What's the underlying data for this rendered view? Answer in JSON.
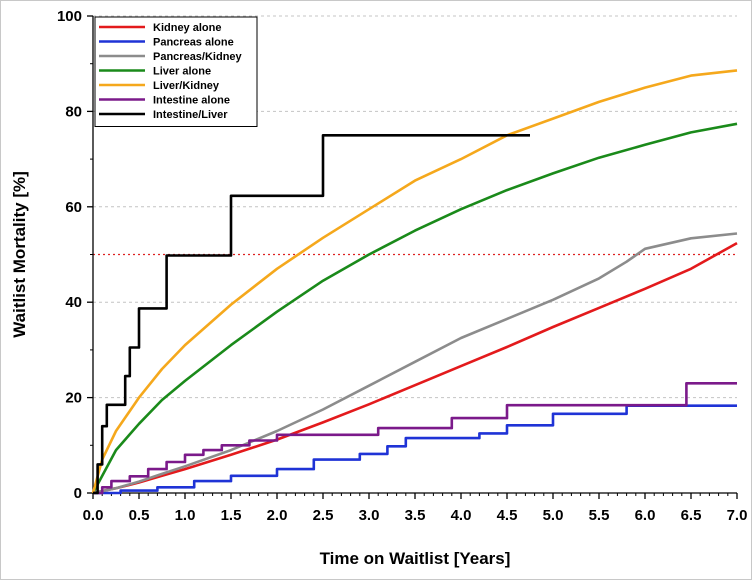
{
  "chart_data": {
    "type": "line",
    "xlabel": "Time on Waitlist [Years]",
    "ylabel": "Waitlist Mortality [%]",
    "xlim": [
      0,
      7.0
    ],
    "ylim": [
      0,
      100
    ],
    "xticks": [
      "0.0",
      "0.5",
      "1.0",
      "1.5",
      "2.0",
      "2.5",
      "3.0",
      "3.5",
      "4.0",
      "4.5",
      "5.0",
      "5.5",
      "6.0",
      "6.5",
      "7.0"
    ],
    "yticks": [
      "0",
      "20",
      "40",
      "60",
      "80",
      "100"
    ],
    "grid": "horizontal dashed",
    "legend_position": "top-left",
    "reference_line": {
      "y": 50,
      "color": "#dd2222",
      "style": "dotted"
    },
    "series": [
      {
        "name": "Kidney alone",
        "color": "#e31a1c",
        "step": false,
        "x": [
          0,
          0.25,
          0.5,
          0.75,
          1.0,
          1.5,
          2.0,
          2.5,
          3.0,
          3.5,
          4.0,
          4.5,
          5.0,
          5.5,
          6.0,
          6.5,
          7.0
        ],
        "y": [
          0,
          1.0,
          2.2,
          3.6,
          5.0,
          8.0,
          11.2,
          14.8,
          18.6,
          22.6,
          26.6,
          30.6,
          34.8,
          38.8,
          42.8,
          47.0,
          52.4
        ]
      },
      {
        "name": "Pancreas alone",
        "color": "#1f33d6",
        "step": true,
        "x": [
          0,
          0.3,
          0.7,
          1.1,
          1.5,
          2.0,
          2.4,
          2.9,
          3.2,
          3.4,
          4.2,
          4.5,
          5.0,
          5.5,
          5.8,
          7.0
        ],
        "y": [
          0,
          0.5,
          1.2,
          2.5,
          3.6,
          5.0,
          7.0,
          8.2,
          9.8,
          11.5,
          12.5,
          14.2,
          16.6,
          16.6,
          18.3,
          18.3
        ]
      },
      {
        "name": "Pancreas/Kidney",
        "color": "#8c8c8c",
        "step": false,
        "x": [
          0,
          0.25,
          0.5,
          0.75,
          1.0,
          1.5,
          2.0,
          2.5,
          3.0,
          3.5,
          4.0,
          4.5,
          5.0,
          5.5,
          5.8,
          6.0,
          6.5,
          7.0
        ],
        "y": [
          0,
          1.0,
          2.4,
          4.0,
          5.6,
          9.0,
          13.0,
          17.5,
          22.5,
          27.5,
          32.5,
          36.5,
          40.5,
          45.0,
          48.5,
          51.2,
          53.4,
          54.4
        ]
      },
      {
        "name": "Liver alone",
        "color": "#1a8a1a",
        "step": false,
        "x": [
          0,
          0.25,
          0.5,
          0.75,
          1.0,
          1.5,
          2.0,
          2.5,
          3.0,
          3.5,
          4.0,
          4.5,
          5.0,
          5.5,
          6.0,
          6.5,
          7.0
        ],
        "y": [
          0,
          9.0,
          14.5,
          19.5,
          23.5,
          31.0,
          38.0,
          44.5,
          50.0,
          55.0,
          59.5,
          63.5,
          67.0,
          70.3,
          73.0,
          75.6,
          77.4
        ]
      },
      {
        "name": "Liver/Kidney",
        "color": "#f5a81c",
        "step": false,
        "x": [
          0,
          0.1,
          0.25,
          0.5,
          0.75,
          1.0,
          1.5,
          2.0,
          2.5,
          3.0,
          3.5,
          4.0,
          4.5,
          5.0,
          5.5,
          6.0,
          6.5,
          7.0
        ],
        "y": [
          0,
          7.0,
          13.0,
          20.0,
          26.0,
          31.0,
          39.5,
          47.0,
          53.5,
          59.5,
          65.5,
          70.0,
          75.0,
          78.5,
          82.0,
          85.0,
          87.5,
          88.6
        ]
      },
      {
        "name": "Intestine alone",
        "color": "#7b1a8a",
        "step": true,
        "x": [
          0,
          0.1,
          0.2,
          0.4,
          0.6,
          0.8,
          1.0,
          1.2,
          1.4,
          1.7,
          2.0,
          3.1,
          3.9,
          4.5,
          6.45,
          7.0
        ],
        "y": [
          0,
          1.2,
          2.5,
          3.5,
          5.0,
          6.5,
          8.0,
          9.0,
          10.0,
          11.0,
          12.2,
          13.6,
          15.7,
          18.4,
          23.0,
          23.0
        ]
      },
      {
        "name": "Intestine/Liver",
        "color": "#000000",
        "step": true,
        "x": [
          0,
          0.05,
          0.1,
          0.15,
          0.35,
          0.4,
          0.5,
          0.55,
          0.8,
          1.5,
          2.5,
          4.75
        ],
        "y": [
          0,
          6.0,
          14.0,
          18.5,
          24.5,
          30.5,
          38.7,
          38.7,
          49.8,
          62.3,
          75.0,
          75.0
        ]
      }
    ]
  }
}
